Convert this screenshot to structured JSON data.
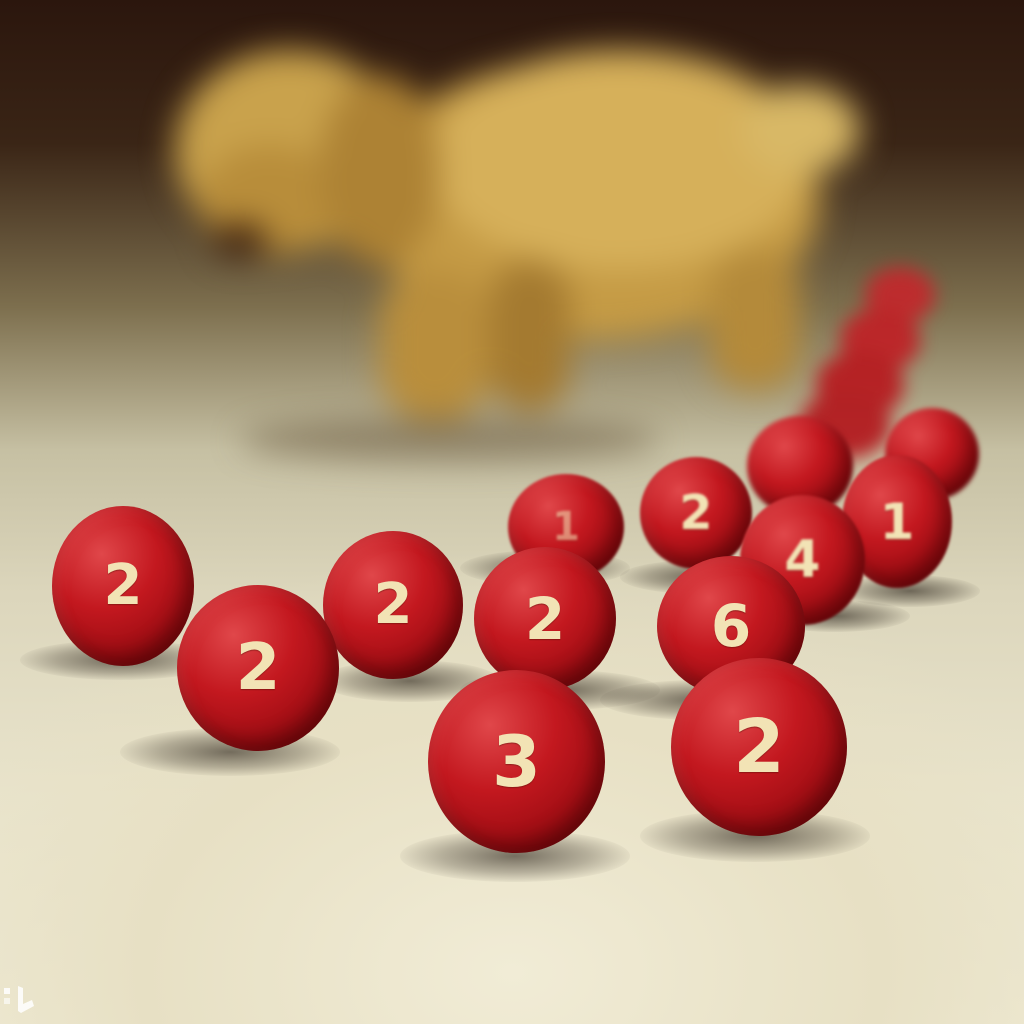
{
  "scene": {
    "subject": "red numbered balls",
    "background_subject": "blurred golden puppy"
  },
  "balls": [
    {
      "id": "ball-front-left",
      "label": "2"
    },
    {
      "id": "ball-mid-left",
      "label": "2"
    },
    {
      "id": "ball-center-left",
      "label": "2"
    },
    {
      "id": "ball-center",
      "label": "2"
    },
    {
      "id": "ball-front-center",
      "label": "3"
    },
    {
      "id": "ball-front-right",
      "label": "2"
    },
    {
      "id": "ball-right-mid",
      "label": "6"
    },
    {
      "id": "ball-back-center",
      "label": "1"
    },
    {
      "id": "ball-back-right-a",
      "label": "2"
    },
    {
      "id": "ball-right-b",
      "label": "4"
    },
    {
      "id": "ball-far-right",
      "label": "1"
    },
    {
      "id": "ball-back-right-c",
      "label": ""
    },
    {
      "id": "ball-back-right-d",
      "label": ""
    }
  ],
  "colors": {
    "ball_red": "#c3181f",
    "numeral_cream": "#f2e3b5",
    "dog_gold": "#c9a24a",
    "table_cream": "#ebe6cf"
  }
}
